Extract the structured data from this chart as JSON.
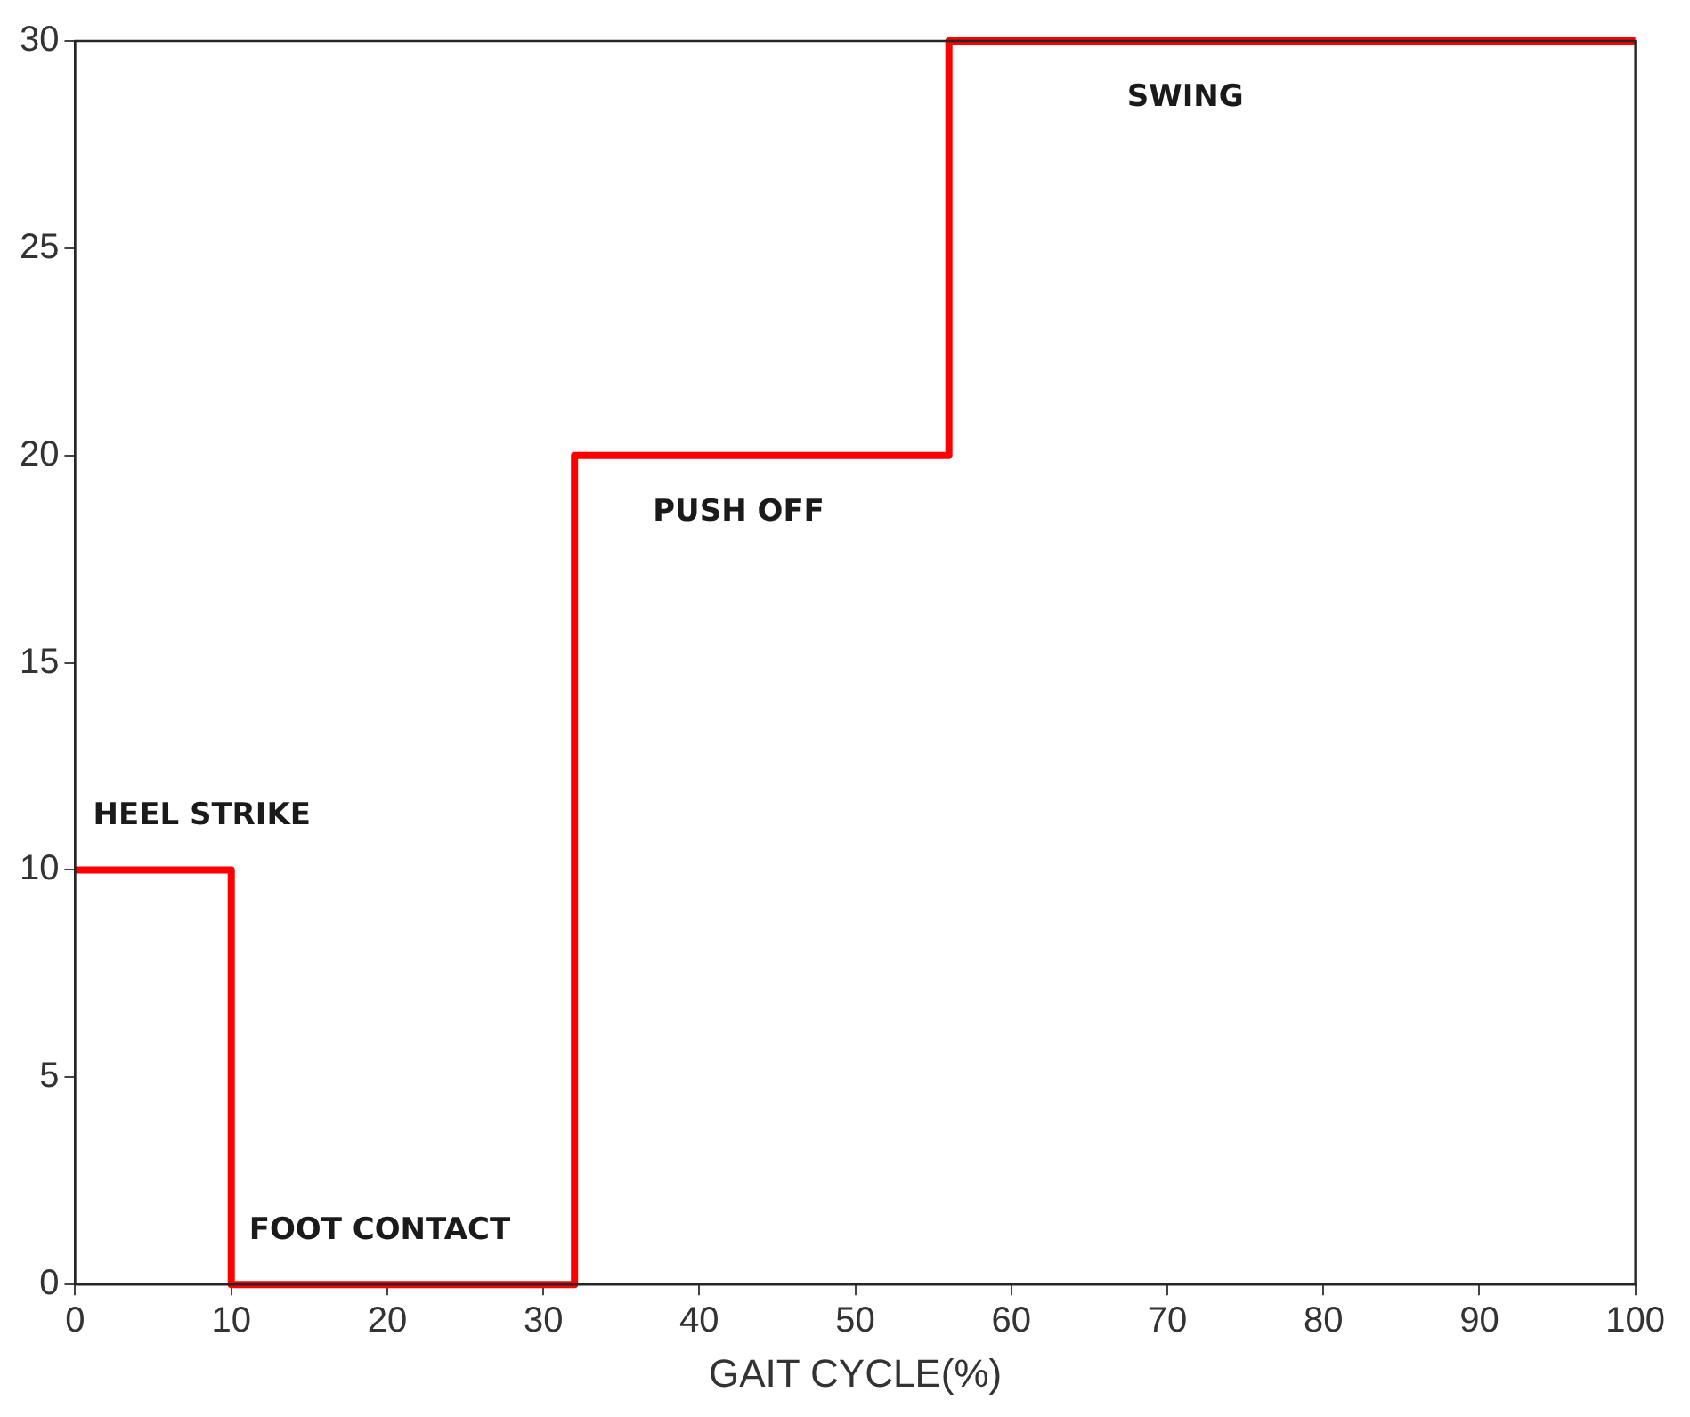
{
  "chart_data": {
    "type": "step",
    "xlabel": "GAIT CYCLE(%)",
    "series": [
      {
        "color": "#ff0000",
        "x": [
          0,
          10,
          32,
          56,
          100
        ],
        "values": [
          10,
          0,
          20,
          30,
          30
        ]
      }
    ],
    "xlim": [
      0,
      100
    ],
    "xticks": [
      0,
      10,
      20,
      30,
      40,
      50,
      60,
      70,
      80,
      90,
      100
    ],
    "ylim": [
      0,
      30
    ],
    "yticks": [
      0,
      5,
      10,
      15,
      20,
      25,
      30
    ],
    "grid": false,
    "legend": false,
    "marker": "none",
    "line_style": "solid",
    "annotations": [
      "HEEL STRIKE",
      "FOOT CONTACT",
      "PUSH OFF",
      "SWING"
    ]
  }
}
